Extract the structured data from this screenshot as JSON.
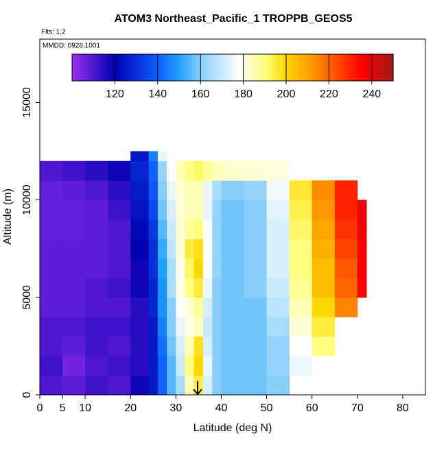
{
  "chart_data": {
    "type": "heatmap",
    "title": "ATOM3 Northeast_Pacific_1 TROPPB_GEOS5",
    "subtitle": "Flts: 1,2",
    "annotation": "MMDD: 0928,1001",
    "xlabel": "Latitude (deg N)",
    "ylabel": "Altitude (m)",
    "xlim": [
      0,
      85
    ],
    "xticks": [
      0,
      5,
      10,
      20,
      30,
      40,
      50,
      60,
      70,
      80
    ],
    "ylim": [
      0,
      18250
    ],
    "yticks": [
      0,
      5000,
      10000,
      15000
    ],
    "clim": [
      100,
      250
    ],
    "cticks": [
      120,
      140,
      160,
      180,
      200,
      220,
      240
    ],
    "colorscale": [
      [
        100,
        "#9a30f0"
      ],
      [
        120,
        "#0000b0"
      ],
      [
        140,
        "#1060ff"
      ],
      [
        150,
        "#1ea0ff"
      ],
      [
        160,
        "#87cefa"
      ],
      [
        178,
        "#ffffff"
      ],
      [
        190,
        "#ffff80"
      ],
      [
        200,
        "#ffd700"
      ],
      [
        210,
        "#ffa500"
      ],
      [
        225,
        "#ff4500"
      ],
      [
        235,
        "#ff0000"
      ],
      [
        250,
        "#a01818"
      ]
    ],
    "xbins": [
      0,
      5,
      10,
      15,
      20,
      24,
      26,
      28,
      30,
      32,
      34,
      36,
      38,
      40,
      45,
      50,
      55,
      60,
      65,
      70,
      72
    ],
    "ybins": [
      0,
      1000,
      2000,
      3000,
      4000,
      5000,
      6000,
      7000,
      8000,
      9000,
      10000,
      11000,
      12000,
      12500
    ],
    "values": [
      [
        110,
        108,
        112,
        110,
        118,
        125,
        140,
        155,
        165,
        185,
        195,
        172,
        160,
        158,
        158,
        160,
        null,
        null,
        null,
        null
      ],
      [
        112,
        105,
        110,
        112,
        115,
        125,
        140,
        155,
        170,
        190,
        200,
        175,
        160,
        158,
        158,
        162,
        175,
        null,
        null,
        null
      ],
      [
        110,
        108,
        112,
        110,
        115,
        125,
        142,
        158,
        172,
        185,
        198,
        172,
        160,
        158,
        158,
        162,
        178,
        190,
        null,
        null
      ],
      [
        110,
        110,
        112,
        112,
        115,
        125,
        145,
        160,
        175,
        180,
        185,
        170,
        160,
        158,
        158,
        165,
        182,
        195,
        null,
        null
      ],
      [
        108,
        108,
        110,
        110,
        115,
        128,
        148,
        160,
        178,
        182,
        188,
        172,
        160,
        158,
        158,
        168,
        185,
        200,
        215,
        null
      ],
      [
        108,
        108,
        110,
        112,
        118,
        128,
        148,
        165,
        180,
        190,
        195,
        175,
        160,
        158,
        160,
        170,
        188,
        205,
        220,
        235
      ],
      [
        108,
        108,
        108,
        110,
        118,
        130,
        150,
        165,
        180,
        192,
        200,
        178,
        162,
        158,
        160,
        172,
        190,
        205,
        222,
        235
      ],
      [
        108,
        108,
        108,
        110,
        120,
        130,
        152,
        168,
        182,
        195,
        198,
        178,
        162,
        158,
        160,
        172,
        190,
        208,
        225,
        235
      ],
      [
        107,
        107,
        108,
        110,
        122,
        132,
        155,
        170,
        182,
        188,
        190,
        178,
        162,
        158,
        160,
        172,
        192,
        210,
        228,
        238
      ],
      [
        107,
        107,
        108,
        112,
        124,
        135,
        158,
        172,
        182,
        185,
        185,
        175,
        162,
        158,
        160,
        174,
        194,
        212,
        230,
        238
      ],
      [
        107,
        108,
        110,
        114,
        126,
        138,
        160,
        175,
        182,
        185,
        185,
        175,
        165,
        160,
        162,
        176,
        196,
        214,
        230,
        null
      ],
      [
        110,
        112,
        115,
        118,
        128,
        140,
        162,
        178,
        185,
        190,
        192,
        188,
        185,
        183,
        182,
        181,
        null,
        null,
        null,
        null
      ],
      [
        null,
        null,
        null,
        null,
        125,
        145,
        175,
        null,
        null,
        null,
        null,
        null,
        null,
        null,
        null,
        null,
        null,
        null,
        null,
        null
      ]
    ]
  }
}
